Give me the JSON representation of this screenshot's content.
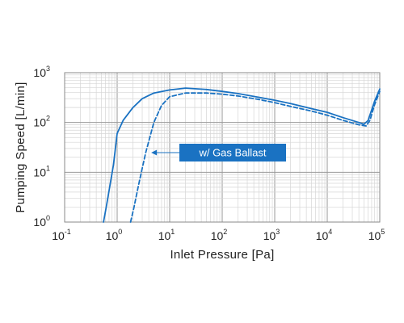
{
  "chart_data": {
    "type": "line",
    "xlabel": "Inlet Pressure [Pa]",
    "ylabel": "Pumping Speed [L/min]",
    "xscale": "log",
    "yscale": "log",
    "xlim": [
      0.1,
      100000
    ],
    "ylim": [
      1,
      1000
    ],
    "grid": true,
    "x_tick_labels": [
      {
        "base": "10",
        "exp": "-1"
      },
      {
        "base": "10",
        "exp": "0"
      },
      {
        "base": "10",
        "exp": "1"
      },
      {
        "base": "10",
        "exp": "2"
      },
      {
        "base": "10",
        "exp": "3"
      },
      {
        "base": "10",
        "exp": "4"
      },
      {
        "base": "10",
        "exp": "5"
      }
    ],
    "y_tick_labels": [
      {
        "base": "10",
        "exp": "0"
      },
      {
        "base": "10",
        "exp": "1"
      },
      {
        "base": "10",
        "exp": "2"
      },
      {
        "base": "10",
        "exp": "3"
      }
    ],
    "series": [
      {
        "line_style": "solid",
        "color": "#1a72c2",
        "points": [
          [
            0.55,
            1
          ],
          [
            0.62,
            2
          ],
          [
            0.72,
            5
          ],
          [
            0.85,
            14
          ],
          [
            1.0,
            60
          ],
          [
            1.3,
            110
          ],
          [
            2.0,
            200
          ],
          [
            3.0,
            300
          ],
          [
            5.0,
            390
          ],
          [
            10,
            450
          ],
          [
            20,
            490
          ],
          [
            50,
            460
          ],
          [
            100,
            420
          ],
          [
            200,
            380
          ],
          [
            500,
            320
          ],
          [
            1000,
            280
          ],
          [
            2000,
            240
          ],
          [
            5000,
            190
          ],
          [
            10000,
            160
          ],
          [
            20000,
            125
          ],
          [
            40000,
            100
          ],
          [
            50000,
            92
          ],
          [
            60000,
            110
          ],
          [
            80000,
            270
          ],
          [
            100000,
            470
          ]
        ]
      },
      {
        "name": "w/ Gas Ballast",
        "line_style": "dashed",
        "color": "#1a72c2",
        "points": [
          [
            1.8,
            1
          ],
          [
            2.1,
            2
          ],
          [
            2.5,
            5
          ],
          [
            3.0,
            12
          ],
          [
            3.5,
            25
          ],
          [
            5.0,
            100
          ],
          [
            7.0,
            220
          ],
          [
            10,
            330
          ],
          [
            20,
            390
          ],
          [
            50,
            390
          ],
          [
            100,
            370
          ],
          [
            200,
            340
          ],
          [
            500,
            290
          ],
          [
            1000,
            250
          ],
          [
            2000,
            210
          ],
          [
            5000,
            170
          ],
          [
            10000,
            140
          ],
          [
            20000,
            110
          ],
          [
            40000,
            90
          ],
          [
            55000,
            85
          ],
          [
            65000,
            110
          ],
          [
            80000,
            230
          ],
          [
            100000,
            420
          ]
        ]
      }
    ],
    "annotation": {
      "text": "w/ Gas Ballast",
      "box_color": "#1a72c2",
      "arrow_to": [
        4.0,
        40
      ]
    }
  }
}
